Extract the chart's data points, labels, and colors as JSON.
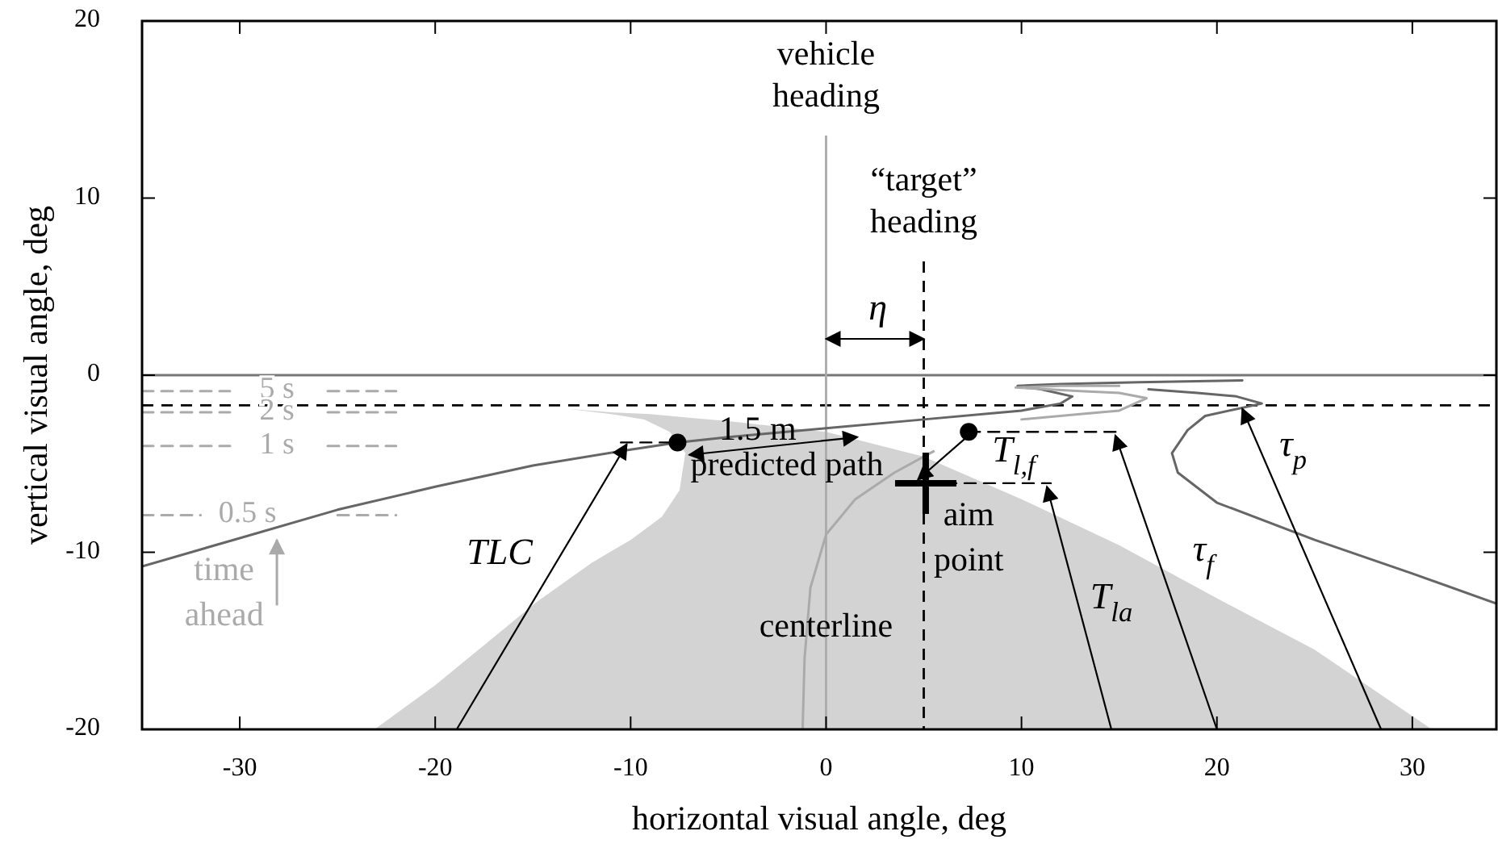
{
  "chart_data": {
    "type": "line",
    "xlabel": "horizontal visual angle, deg",
    "ylabel": "vertical visual angle, deg",
    "xlim": [
      -35,
      34.3
    ],
    "ylim": [
      -20,
      20
    ],
    "xticks": [
      -30,
      -20,
      -10,
      0,
      10,
      20,
      30
    ],
    "yticks": [
      -20,
      -10,
      0,
      10,
      20
    ],
    "grid": false,
    "legend": false,
    "series": [
      {
        "color": "#666666",
        "line_style": "solid",
        "x": [
          -35,
          -30,
          -25,
          -20,
          -15,
          -10,
          -7.6,
          -5,
          0,
          5,
          10,
          12,
          12.6,
          11,
          9.8,
          12,
          16,
          21.3
        ],
        "values": [
          -10.8,
          -9.2,
          -7.6,
          -6.3,
          -5.1,
          -4.2,
          -3.8,
          -3.5,
          -3.0,
          -2.5,
          -2.0,
          -1.6,
          -1.2,
          -0.8,
          -0.6,
          -0.5,
          -0.4,
          -0.3
        ]
      },
      {
        "color": "#aaaaaa",
        "line_style": "solid",
        "x": [
          -1.2,
          -1.1,
          -0.8,
          0,
          1.5,
          3.5,
          5.5,
          7.3,
          10,
          13,
          15,
          16.4,
          15,
          13,
          9.7,
          12,
          15
        ],
        "values": [
          -20,
          -16,
          -12,
          -9,
          -7,
          -5.5,
          -4.3,
          null,
          -2.5,
          -2.2,
          -2.0,
          -1.3,
          -1.0,
          -0.9,
          -0.7,
          -0.6,
          -0.6
        ]
      },
      {
        "color": "#666666",
        "line_style": "solid",
        "x": [
          34.3,
          30,
          25,
          20,
          18,
          17.7,
          18.5,
          19.4,
          22.3,
          21,
          19,
          16.5
        ],
        "values": [
          -12.9,
          -11.2,
          -9.3,
          -7.2,
          -5.5,
          -4.4,
          -3.1,
          -2.3,
          -1.6,
          -1.2,
          -1.0,
          -0.8
        ]
      },
      {
        "type": "line",
        "name": "5 s",
        "color": "#aaaaaa",
        "line_style": "dashed",
        "x": [
          -35,
          -30.5,
          -28.1,
          -25.5,
          -22
        ],
        "values": [
          -0.9,
          -0.9,
          null,
          -0.9,
          -0.9
        ]
      },
      {
        "type": "line",
        "name": "2 s",
        "color": "#aaaaaa",
        "line_style": "dashed",
        "x": [
          -35,
          -30.5,
          -28.1,
          -25.5,
          -22
        ],
        "values": [
          -2.1,
          -2.1,
          null,
          -2.1,
          -2.1
        ]
      },
      {
        "type": "line",
        "name": "1 s",
        "color": "#aaaaaa",
        "line_style": "dashed",
        "x": [
          -35,
          -30.5,
          -28.1,
          -25.5,
          -22
        ],
        "values": [
          -4,
          -4,
          null,
          -4,
          -4
        ]
      },
      {
        "type": "line",
        "name": "0.5 s",
        "color": "#aaaaaa",
        "line_style": "dashed",
        "x": [
          -35,
          -32,
          -29.6,
          -25,
          -22
        ],
        "values": [
          -7.9,
          -7.9,
          null,
          -7.9,
          -7.9
        ]
      },
      {
        "type": "line",
        "color": "#000000",
        "line_style": "dashed",
        "x": [
          -10.5,
          -7.6
        ],
        "values": [
          -3.8,
          -3.8
        ]
      },
      {
        "type": "line",
        "color": "#000000",
        "line_style": "dashed",
        "x": [
          7.3,
          15
        ],
        "values": [
          -3.2,
          -3.2
        ]
      },
      {
        "type": "line",
        "color": "#000000",
        "line_style": "dashed",
        "x": [
          5.1,
          11.5
        ],
        "values": [
          -6.1,
          -6.1
        ]
      },
      {
        "type": "scatter",
        "color": "#000000",
        "marker": "circle",
        "x": [
          -7.6,
          7.3
        ],
        "values": [
          -3.8,
          -3.2
        ]
      },
      {
        "type": "scatter",
        "color": "#000000",
        "marker": "cross",
        "x": [
          5.1
        ],
        "values": [
          -6.1
        ]
      }
    ],
    "ref_lines": [
      {
        "axis": "y",
        "value": 0,
        "color": "#777777",
        "line_style": "solid"
      },
      {
        "axis": "y",
        "value": -1.7,
        "color": "#000000",
        "line_style": "dashed"
      },
      {
        "axis": "x",
        "value": 0,
        "label": "vehicle\nheading",
        "color": "#aaaaaa",
        "line_style": "solid"
      },
      {
        "axis": "x",
        "value": 5,
        "label": "“target”\nheading",
        "color": "#000000",
        "line_style": "dashed"
      }
    ],
    "annotations": [
      "η",
      {
        "text": "1.5 m",
        "x": -3.5,
        "y": -3.2
      },
      "predicted path",
      "T$_{l,f}$",
      "aim\npoint",
      "TLC",
      {
        "text": "centerline",
        "x": 0,
        "y": -14.3
      },
      "T$_{la}$",
      "τ$_{f}$",
      "τ$_{p}$",
      "time\nahead"
    ]
  }
}
